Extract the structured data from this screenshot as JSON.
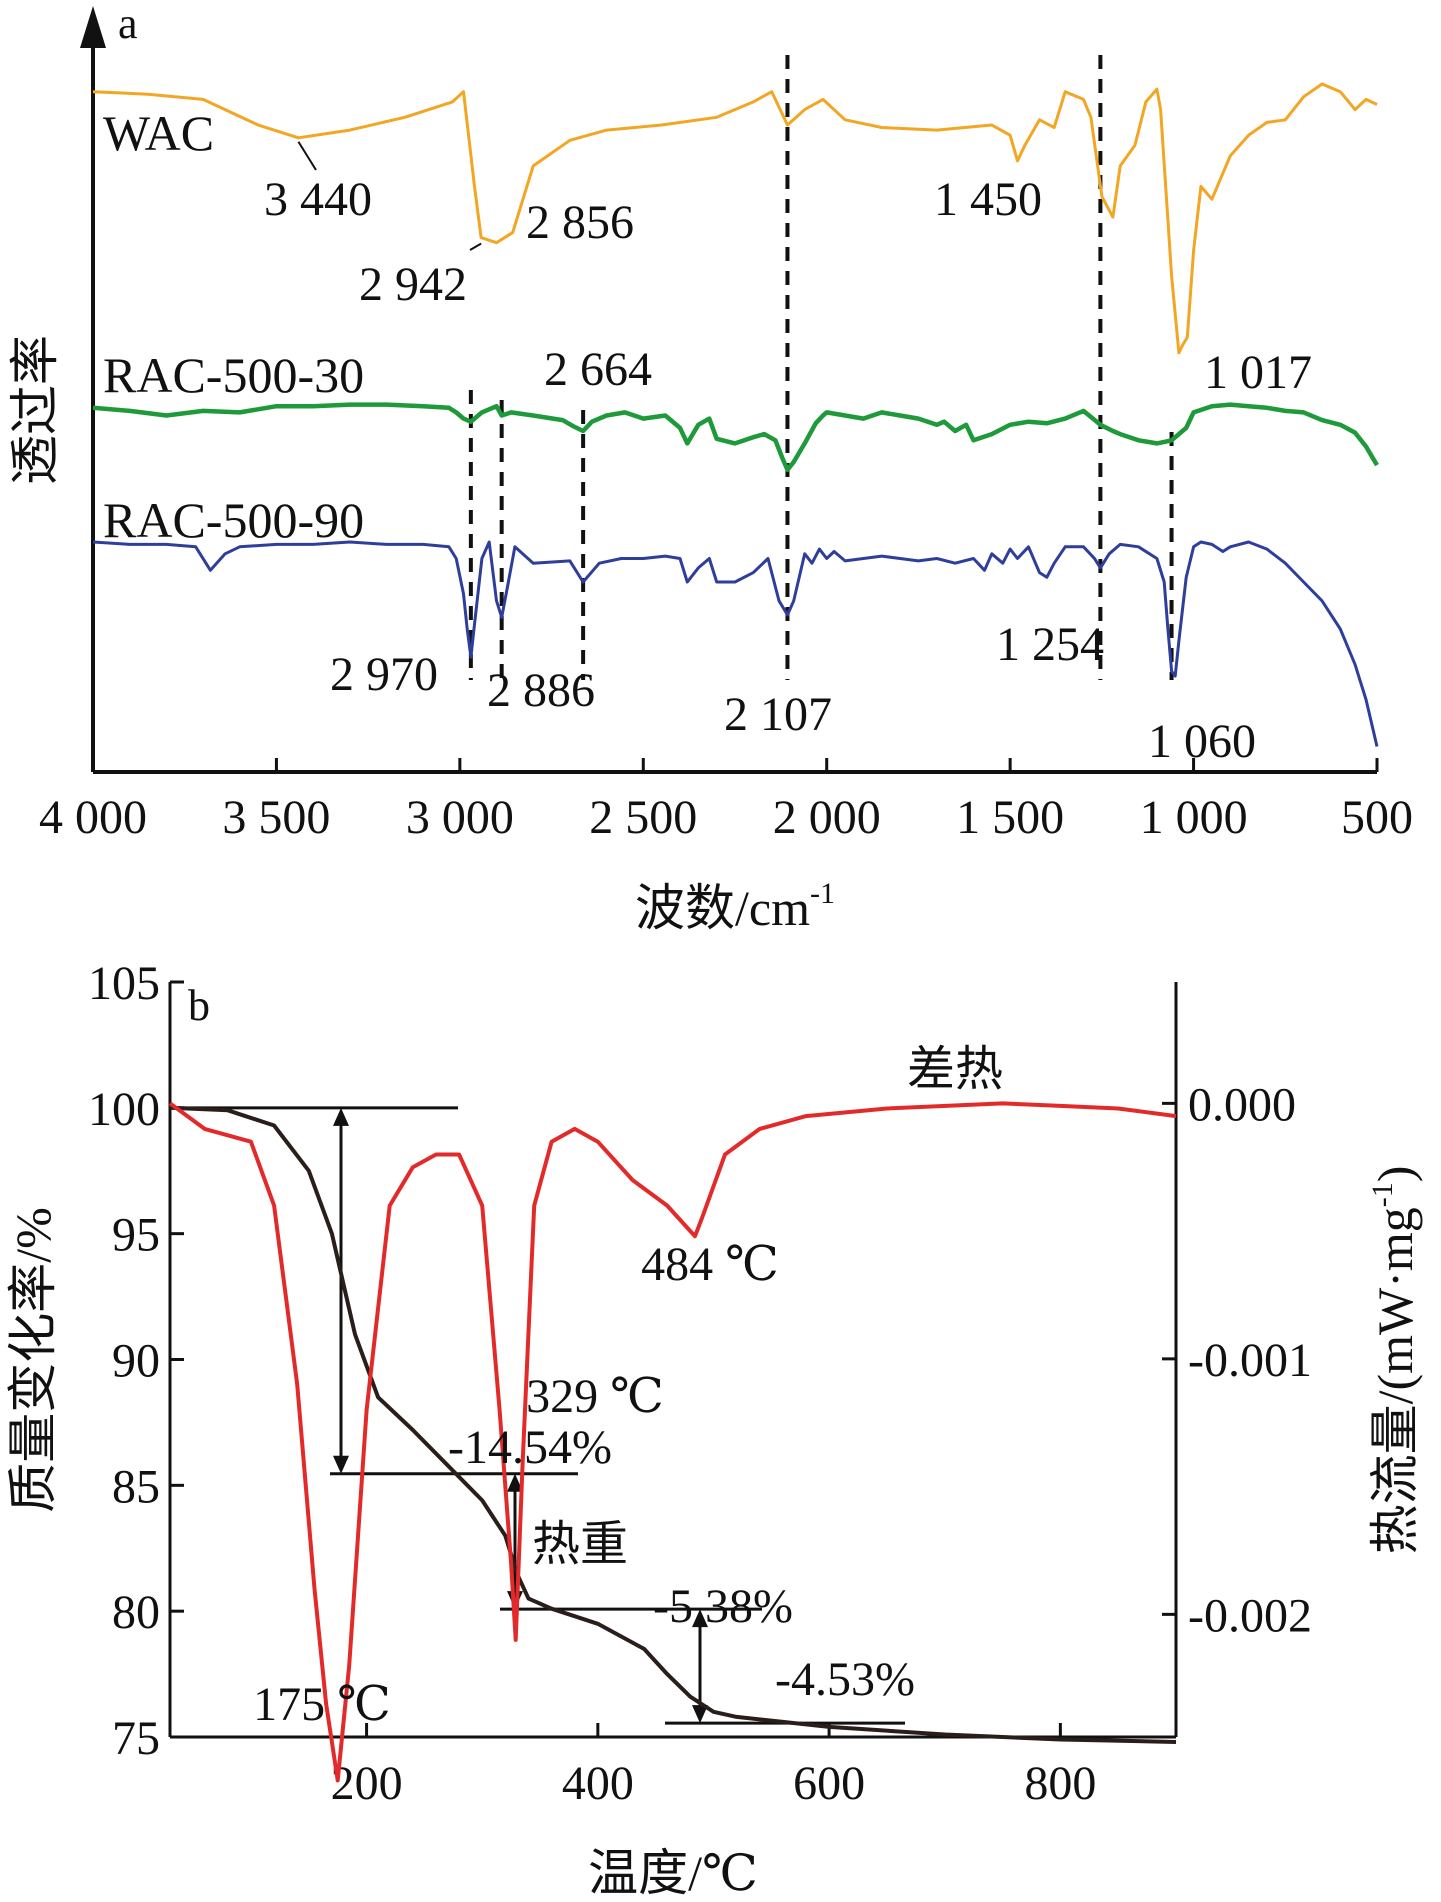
{
  "chart_data": [
    {
      "panel_label": "a",
      "type": "line",
      "xlabel": "波数/cm",
      "xlabel_sup": "-1",
      "ylabel": "透过率",
      "x_reversed": true,
      "xlim": [
        4000,
        500
      ],
      "x_ticks": [
        {
          "value": 4000,
          "label": "4 000"
        },
        {
          "value": 3500,
          "label": "3 500"
        },
        {
          "value": 3000,
          "label": "3 000"
        },
        {
          "value": 2500,
          "label": "2 500"
        },
        {
          "value": 2000,
          "label": "2 000"
        },
        {
          "value": 1500,
          "label": "1 500"
        },
        {
          "value": 1000,
          "label": "1 000"
        },
        {
          "value": 500,
          "label": "500"
        }
      ],
      "series": [
        {
          "name": "WAC",
          "color": "#f2a623",
          "x": [
            4000,
            3850,
            3700,
            3550,
            3440,
            3300,
            3150,
            3020,
            2990,
            2960,
            2942,
            2900,
            2856,
            2800,
            2700,
            2600,
            2450,
            2300,
            2200,
            2150,
            2107,
            2060,
            2010,
            1950,
            1850,
            1700,
            1550,
            1500,
            1480,
            1460,
            1420,
            1380,
            1350,
            1300,
            1280,
            1250,
            1220,
            1200,
            1160,
            1130,
            1100,
            1090,
            1060,
            1040,
            1030,
            1017,
            1000,
            980,
            950,
            900,
            850,
            800,
            750,
            700,
            650,
            600,
            560,
            530,
            500
          ],
          "y": [
            0.97,
            0.96,
            0.94,
            0.84,
            0.79,
            0.82,
            0.87,
            0.93,
            0.97,
            0.6,
            0.4,
            0.38,
            0.42,
            0.68,
            0.78,
            0.82,
            0.84,
            0.87,
            0.93,
            0.97,
            0.84,
            0.9,
            0.94,
            0.86,
            0.83,
            0.82,
            0.84,
            0.8,
            0.7,
            0.76,
            0.86,
            0.83,
            0.97,
            0.94,
            0.87,
            0.56,
            0.48,
            0.68,
            0.76,
            0.93,
            0.98,
            0.9,
            0.25,
            -0.05,
            -0.02,
            0.01,
            0.35,
            0.6,
            0.55,
            0.72,
            0.8,
            0.85,
            0.86,
            0.95,
            1.0,
            0.97,
            0.9,
            0.94,
            0.92
          ]
        },
        {
          "name": "RAC-500-30",
          "color": "#1f9a3a",
          "x": [
            4000,
            3900,
            3800,
            3700,
            3600,
            3500,
            3400,
            3300,
            3200,
            3100,
            3030,
            3010,
            2990,
            2970,
            2940,
            2900,
            2886,
            2860,
            2800,
            2720,
            2690,
            2664,
            2640,
            2600,
            2550,
            2500,
            2440,
            2400,
            2380,
            2350,
            2320,
            2300,
            2250,
            2200,
            2170,
            2140,
            2120,
            2107,
            2090,
            2060,
            2030,
            2010,
            2000,
            1950,
            1900,
            1850,
            1800,
            1750,
            1700,
            1680,
            1650,
            1620,
            1600,
            1550,
            1500,
            1450,
            1400,
            1350,
            1300,
            1254,
            1220,
            1200,
            1150,
            1100,
            1080,
            1060,
            1040,
            1020,
            1000,
            950,
            900,
            850,
            800,
            750,
            700,
            650,
            600,
            560,
            530,
            500
          ],
          "y": [
            0.95,
            0.93,
            0.9,
            0.93,
            0.92,
            0.96,
            0.96,
            0.97,
            0.97,
            0.96,
            0.95,
            0.92,
            0.88,
            0.86,
            0.92,
            0.96,
            0.9,
            0.92,
            0.9,
            0.87,
            0.83,
            0.8,
            0.86,
            0.9,
            0.92,
            0.88,
            0.9,
            0.82,
            0.72,
            0.84,
            0.88,
            0.75,
            0.72,
            0.76,
            0.78,
            0.74,
            0.62,
            0.55,
            0.6,
            0.72,
            0.85,
            0.9,
            0.92,
            0.9,
            0.88,
            0.92,
            0.9,
            0.88,
            0.84,
            0.86,
            0.8,
            0.84,
            0.74,
            0.78,
            0.84,
            0.86,
            0.85,
            0.88,
            0.93,
            0.84,
            0.8,
            0.78,
            0.74,
            0.72,
            0.73,
            0.74,
            0.78,
            0.82,
            0.92,
            0.96,
            0.97,
            0.96,
            0.95,
            0.93,
            0.92,
            0.87,
            0.84,
            0.79,
            0.7,
            0.58
          ]
        },
        {
          "name": "RAC-500-90",
          "color": "#2e3e9b",
          "x": [
            4000,
            3900,
            3800,
            3720,
            3680,
            3640,
            3600,
            3500,
            3400,
            3300,
            3200,
            3100,
            3030,
            3010,
            2990,
            2980,
            2970,
            2960,
            2940,
            2920,
            2900,
            2886,
            2870,
            2850,
            2800,
            2700,
            2664,
            2620,
            2560,
            2500,
            2440,
            2400,
            2380,
            2350,
            2320,
            2300,
            2250,
            2200,
            2160,
            2130,
            2107,
            2090,
            2060,
            2040,
            2020,
            2000,
            1980,
            1950,
            1900,
            1850,
            1800,
            1750,
            1700,
            1650,
            1600,
            1570,
            1550,
            1520,
            1500,
            1480,
            1450,
            1420,
            1400,
            1380,
            1350,
            1300,
            1270,
            1254,
            1230,
            1200,
            1150,
            1100,
            1080,
            1070,
            1060,
            1050,
            1040,
            1020,
            1000,
            980,
            950,
            920,
            900,
            850,
            800,
            750,
            700,
            650,
            600,
            560,
            530,
            500
          ],
          "y": [
            0.97,
            0.96,
            0.96,
            0.95,
            0.85,
            0.92,
            0.95,
            0.96,
            0.96,
            0.97,
            0.96,
            0.96,
            0.95,
            0.9,
            0.75,
            0.6,
            0.48,
            0.62,
            0.9,
            0.97,
            0.72,
            0.65,
            0.78,
            0.95,
            0.88,
            0.89,
            0.8,
            0.88,
            0.9,
            0.9,
            0.91,
            0.9,
            0.8,
            0.86,
            0.9,
            0.8,
            0.8,
            0.84,
            0.9,
            0.72,
            0.66,
            0.72,
            0.92,
            0.88,
            0.94,
            0.9,
            0.93,
            0.89,
            0.9,
            0.91,
            0.9,
            0.89,
            0.9,
            0.88,
            0.9,
            0.85,
            0.92,
            0.88,
            0.94,
            0.9,
            0.95,
            0.84,
            0.82,
            0.88,
            0.95,
            0.95,
            0.9,
            0.86,
            0.92,
            0.96,
            0.95,
            0.9,
            0.8,
            0.6,
            0.42,
            0.4,
            0.55,
            0.82,
            0.95,
            0.97,
            0.96,
            0.93,
            0.95,
            0.97,
            0.94,
            0.88,
            0.8,
            0.72,
            0.6,
            0.45,
            0.3,
            0.1
          ]
        }
      ],
      "dashed_lines": [
        2970,
        2886,
        2664,
        2107,
        1254,
        1060
      ],
      "annotations": [
        {
          "text": "3 440",
          "x": 3440,
          "series": "WAC"
        },
        {
          "text": "2 942",
          "x": 2942,
          "series": "WAC"
        },
        {
          "text": "2 856",
          "x": 2856,
          "series": "WAC"
        },
        {
          "text": "1 450",
          "x": 1450,
          "series": "WAC"
        },
        {
          "text": "1 017",
          "x": 1017,
          "series": "WAC"
        },
        {
          "text": "2 664",
          "x": 2664,
          "series": "RAC-500-30"
        },
        {
          "text": "2 970",
          "x": 2970,
          "series": "RAC-500-90"
        },
        {
          "text": "2 886",
          "x": 2886,
          "series": "RAC-500-90"
        },
        {
          "text": "2 107",
          "x": 2107,
          "series": "RAC-500-90"
        },
        {
          "text": "1 254",
          "x": 1254,
          "series": "RAC-500-90"
        },
        {
          "text": "1 060",
          "x": 1060,
          "series": "RAC-500-90"
        }
      ]
    },
    {
      "panel_label": "b",
      "type": "line",
      "xlabel": "温度/℃",
      "ylabel": "质量变化率/%",
      "ylabel_right": "热流量/(mW·mg",
      "ylabel_right_sup": "-1",
      "ylabel_right_end": ")",
      "xlim": [
        30,
        900
      ],
      "ylim": [
        75,
        105
      ],
      "y2lim": [
        -0.00248,
        0.000475
      ],
      "x_ticks": [
        200,
        400,
        600,
        800
      ],
      "y_ticks": [
        75,
        80,
        85,
        90,
        95,
        100,
        105
      ],
      "y2_ticks": [
        {
          "value": 0.0,
          "label": "0.000"
        },
        {
          "value": -0.001,
          "label": "-0.001"
        },
        {
          "value": -0.002,
          "label": "-0.002"
        }
      ],
      "series": [
        {
          "name": "热重",
          "color": "#2a1e1a",
          "x": [
            30,
            80,
            120,
            150,
            170,
            190,
            210,
            240,
            270,
            300,
            320,
            330,
            340,
            360,
            400,
            440,
            460,
            480,
            500,
            520,
            560,
            600,
            700,
            800,
            900
          ],
          "y": [
            100.0,
            99.9,
            99.3,
            97.5,
            95.0,
            91.0,
            88.5,
            87.2,
            85.8,
            84.4,
            83.0,
            81.5,
            80.5,
            80.1,
            79.5,
            78.5,
            77.5,
            76.6,
            76.0,
            75.8,
            75.6,
            75.4,
            75.1,
            74.9,
            74.8
          ]
        },
        {
          "name": "差热",
          "color": "#e32a2a",
          "x": [
            30,
            60,
            100,
            120,
            140,
            155,
            165,
            175,
            185,
            200,
            220,
            240,
            260,
            280,
            300,
            315,
            325,
            329,
            335,
            345,
            360,
            380,
            400,
            430,
            460,
            480,
            484,
            490,
            510,
            540,
            580,
            650,
            750,
            800,
            850,
            900
          ],
          "y": [
            0.0,
            -0.0001,
            -0.00015,
            -0.0004,
            -0.0011,
            -0.0019,
            -0.00235,
            -0.00265,
            -0.0022,
            -0.0012,
            -0.0004,
            -0.00025,
            -0.0002,
            -0.0002,
            -0.0004,
            -0.0012,
            -0.0018,
            -0.0021,
            -0.0014,
            -0.0004,
            -0.00015,
            -0.0001,
            -0.00015,
            -0.0003,
            -0.0004,
            -0.0005,
            -0.00052,
            -0.00045,
            -0.0002,
            -0.0001,
            -5e-05,
            -2e-05,
            0.0,
            -1e-05,
            -2e-05,
            -5e-05
          ]
        }
      ],
      "reference_lines": [
        100.0,
        85.46,
        80.08,
        75.55
      ],
      "annotations": [
        {
          "text": "175 ℃",
          "x": 175
        },
        {
          "text": "329 ℃",
          "x": 329
        },
        {
          "text": "484 ℃",
          "x": 484
        },
        {
          "text": "-14.54%"
        },
        {
          "text": "-5.38%"
        },
        {
          "text": "-4.53%"
        }
      ],
      "series_labels": [
        "差热",
        "热重"
      ]
    }
  ]
}
